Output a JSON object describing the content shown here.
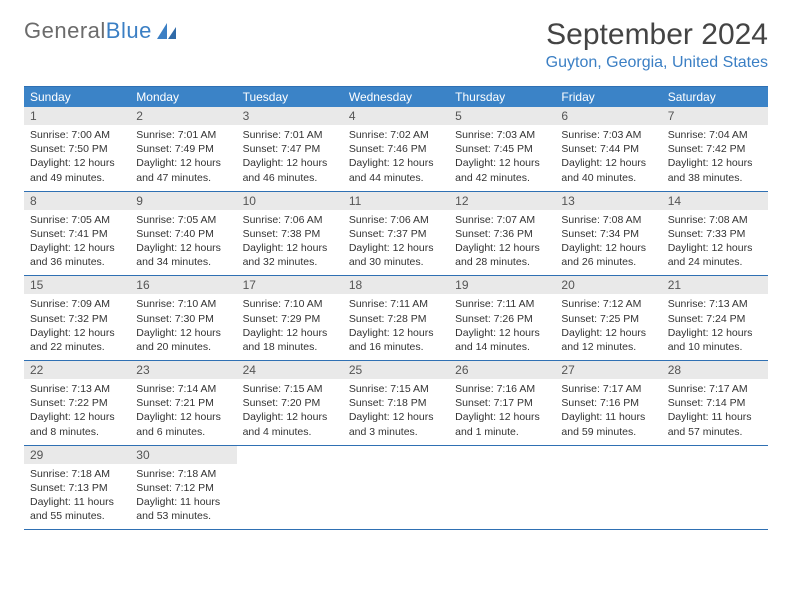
{
  "logo": {
    "text1": "General",
    "text2": "Blue"
  },
  "title": "September 2024",
  "location": "Guyton, Georgia, United States",
  "colors": {
    "header_bg": "#3b83c7",
    "header_text": "#ffffff",
    "accent_border": "#2f70b3",
    "daynum_bg": "#e9e9e9",
    "body_text": "#333333",
    "logo_gray": "#6b6b6b",
    "logo_blue": "#3b7fc4"
  },
  "day_names": [
    "Sunday",
    "Monday",
    "Tuesday",
    "Wednesday",
    "Thursday",
    "Friday",
    "Saturday"
  ],
  "layout": {
    "columns": 7,
    "rows": 5,
    "cell_font_size_pt": 8,
    "header_font_size_pt": 9,
    "title_font_size_pt": 22
  },
  "days": [
    {
      "n": "1",
      "sunrise": "Sunrise: 7:00 AM",
      "sunset": "Sunset: 7:50 PM",
      "daylight": "Daylight: 12 hours and 49 minutes."
    },
    {
      "n": "2",
      "sunrise": "Sunrise: 7:01 AM",
      "sunset": "Sunset: 7:49 PM",
      "daylight": "Daylight: 12 hours and 47 minutes."
    },
    {
      "n": "3",
      "sunrise": "Sunrise: 7:01 AM",
      "sunset": "Sunset: 7:47 PM",
      "daylight": "Daylight: 12 hours and 46 minutes."
    },
    {
      "n": "4",
      "sunrise": "Sunrise: 7:02 AM",
      "sunset": "Sunset: 7:46 PM",
      "daylight": "Daylight: 12 hours and 44 minutes."
    },
    {
      "n": "5",
      "sunrise": "Sunrise: 7:03 AM",
      "sunset": "Sunset: 7:45 PM",
      "daylight": "Daylight: 12 hours and 42 minutes."
    },
    {
      "n": "6",
      "sunrise": "Sunrise: 7:03 AM",
      "sunset": "Sunset: 7:44 PM",
      "daylight": "Daylight: 12 hours and 40 minutes."
    },
    {
      "n": "7",
      "sunrise": "Sunrise: 7:04 AM",
      "sunset": "Sunset: 7:42 PM",
      "daylight": "Daylight: 12 hours and 38 minutes."
    },
    {
      "n": "8",
      "sunrise": "Sunrise: 7:05 AM",
      "sunset": "Sunset: 7:41 PM",
      "daylight": "Daylight: 12 hours and 36 minutes."
    },
    {
      "n": "9",
      "sunrise": "Sunrise: 7:05 AM",
      "sunset": "Sunset: 7:40 PM",
      "daylight": "Daylight: 12 hours and 34 minutes."
    },
    {
      "n": "10",
      "sunrise": "Sunrise: 7:06 AM",
      "sunset": "Sunset: 7:38 PM",
      "daylight": "Daylight: 12 hours and 32 minutes."
    },
    {
      "n": "11",
      "sunrise": "Sunrise: 7:06 AM",
      "sunset": "Sunset: 7:37 PM",
      "daylight": "Daylight: 12 hours and 30 minutes."
    },
    {
      "n": "12",
      "sunrise": "Sunrise: 7:07 AM",
      "sunset": "Sunset: 7:36 PM",
      "daylight": "Daylight: 12 hours and 28 minutes."
    },
    {
      "n": "13",
      "sunrise": "Sunrise: 7:08 AM",
      "sunset": "Sunset: 7:34 PM",
      "daylight": "Daylight: 12 hours and 26 minutes."
    },
    {
      "n": "14",
      "sunrise": "Sunrise: 7:08 AM",
      "sunset": "Sunset: 7:33 PM",
      "daylight": "Daylight: 12 hours and 24 minutes."
    },
    {
      "n": "15",
      "sunrise": "Sunrise: 7:09 AM",
      "sunset": "Sunset: 7:32 PM",
      "daylight": "Daylight: 12 hours and 22 minutes."
    },
    {
      "n": "16",
      "sunrise": "Sunrise: 7:10 AM",
      "sunset": "Sunset: 7:30 PM",
      "daylight": "Daylight: 12 hours and 20 minutes."
    },
    {
      "n": "17",
      "sunrise": "Sunrise: 7:10 AM",
      "sunset": "Sunset: 7:29 PM",
      "daylight": "Daylight: 12 hours and 18 minutes."
    },
    {
      "n": "18",
      "sunrise": "Sunrise: 7:11 AM",
      "sunset": "Sunset: 7:28 PM",
      "daylight": "Daylight: 12 hours and 16 minutes."
    },
    {
      "n": "19",
      "sunrise": "Sunrise: 7:11 AM",
      "sunset": "Sunset: 7:26 PM",
      "daylight": "Daylight: 12 hours and 14 minutes."
    },
    {
      "n": "20",
      "sunrise": "Sunrise: 7:12 AM",
      "sunset": "Sunset: 7:25 PM",
      "daylight": "Daylight: 12 hours and 12 minutes."
    },
    {
      "n": "21",
      "sunrise": "Sunrise: 7:13 AM",
      "sunset": "Sunset: 7:24 PM",
      "daylight": "Daylight: 12 hours and 10 minutes."
    },
    {
      "n": "22",
      "sunrise": "Sunrise: 7:13 AM",
      "sunset": "Sunset: 7:22 PM",
      "daylight": "Daylight: 12 hours and 8 minutes."
    },
    {
      "n": "23",
      "sunrise": "Sunrise: 7:14 AM",
      "sunset": "Sunset: 7:21 PM",
      "daylight": "Daylight: 12 hours and 6 minutes."
    },
    {
      "n": "24",
      "sunrise": "Sunrise: 7:15 AM",
      "sunset": "Sunset: 7:20 PM",
      "daylight": "Daylight: 12 hours and 4 minutes."
    },
    {
      "n": "25",
      "sunrise": "Sunrise: 7:15 AM",
      "sunset": "Sunset: 7:18 PM",
      "daylight": "Daylight: 12 hours and 3 minutes."
    },
    {
      "n": "26",
      "sunrise": "Sunrise: 7:16 AM",
      "sunset": "Sunset: 7:17 PM",
      "daylight": "Daylight: 12 hours and 1 minute."
    },
    {
      "n": "27",
      "sunrise": "Sunrise: 7:17 AM",
      "sunset": "Sunset: 7:16 PM",
      "daylight": "Daylight: 11 hours and 59 minutes."
    },
    {
      "n": "28",
      "sunrise": "Sunrise: 7:17 AM",
      "sunset": "Sunset: 7:14 PM",
      "daylight": "Daylight: 11 hours and 57 minutes."
    },
    {
      "n": "29",
      "sunrise": "Sunrise: 7:18 AM",
      "sunset": "Sunset: 7:13 PM",
      "daylight": "Daylight: 11 hours and 55 minutes."
    },
    {
      "n": "30",
      "sunrise": "Sunrise: 7:18 AM",
      "sunset": "Sunset: 7:12 PM",
      "daylight": "Daylight: 11 hours and 53 minutes."
    }
  ]
}
